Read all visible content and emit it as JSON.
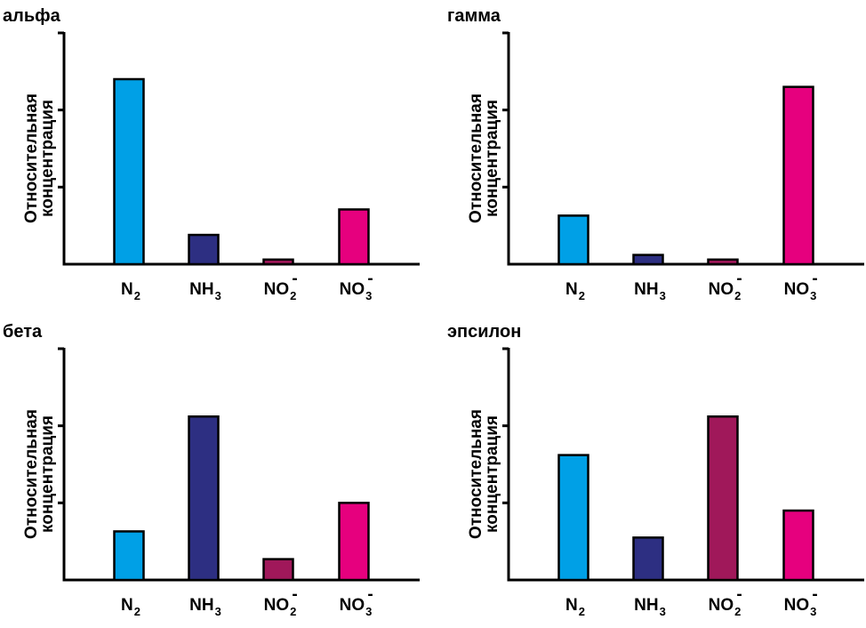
{
  "chart_data": [
    {
      "type": "bar",
      "title": "альфа",
      "ylabel": "Относительная концентрация",
      "ylim": [
        0,
        3
      ],
      "categories": [
        {
          "base": "N",
          "sub": "2",
          "sup": ""
        },
        {
          "base": "NH",
          "sub": "3",
          "sup": ""
        },
        {
          "base": "NO",
          "sub": "2",
          "sup": "-"
        },
        {
          "base": "NO",
          "sub": "3",
          "sup": "-"
        }
      ],
      "values": [
        2.4,
        0.38,
        0.06,
        0.71
      ],
      "colors": [
        "#00a0e6",
        "#2d2f82",
        "#a0185a",
        "#e6007e"
      ]
    },
    {
      "type": "bar",
      "title": "гамма",
      "ylabel": "Относительная концентрация",
      "ylim": [
        0,
        3
      ],
      "categories": [
        {
          "base": "N",
          "sub": "2",
          "sup": ""
        },
        {
          "base": "NH",
          "sub": "3",
          "sup": ""
        },
        {
          "base": "NO",
          "sub": "2",
          "sup": "-"
        },
        {
          "base": "NO",
          "sub": "3",
          "sup": "-"
        }
      ],
      "values": [
        0.63,
        0.12,
        0.06,
        2.3
      ],
      "colors": [
        "#00a0e6",
        "#2d2f82",
        "#a0185a",
        "#e6007e"
      ]
    },
    {
      "type": "bar",
      "title": "бета",
      "ylabel": "Относительная концентрация",
      "ylim": [
        0,
        3
      ],
      "categories": [
        {
          "base": "N",
          "sub": "2",
          "sup": ""
        },
        {
          "base": "NH",
          "sub": "3",
          "sup": ""
        },
        {
          "base": "NO",
          "sub": "2",
          "sup": "-"
        },
        {
          "base": "NO",
          "sub": "3",
          "sup": "-"
        }
      ],
      "values": [
        0.63,
        2.12,
        0.27,
        1.0
      ],
      "colors": [
        "#00a0e6",
        "#2d2f82",
        "#a0185a",
        "#e6007e"
      ]
    },
    {
      "type": "bar",
      "title": "эпсилон",
      "ylabel": "Относительная концентрация",
      "ylim": [
        0,
        3
      ],
      "categories": [
        {
          "base": "N",
          "sub": "2",
          "sup": ""
        },
        {
          "base": "NH",
          "sub": "3",
          "sup": ""
        },
        {
          "base": "NO",
          "sub": "2",
          "sup": "-"
        },
        {
          "base": "NO",
          "sub": "3",
          "sup": "-"
        }
      ],
      "values": [
        1.62,
        0.55,
        2.12,
        0.9
      ],
      "colors": [
        "#00a0e6",
        "#2d2f82",
        "#a0185a",
        "#e6007e"
      ]
    }
  ]
}
